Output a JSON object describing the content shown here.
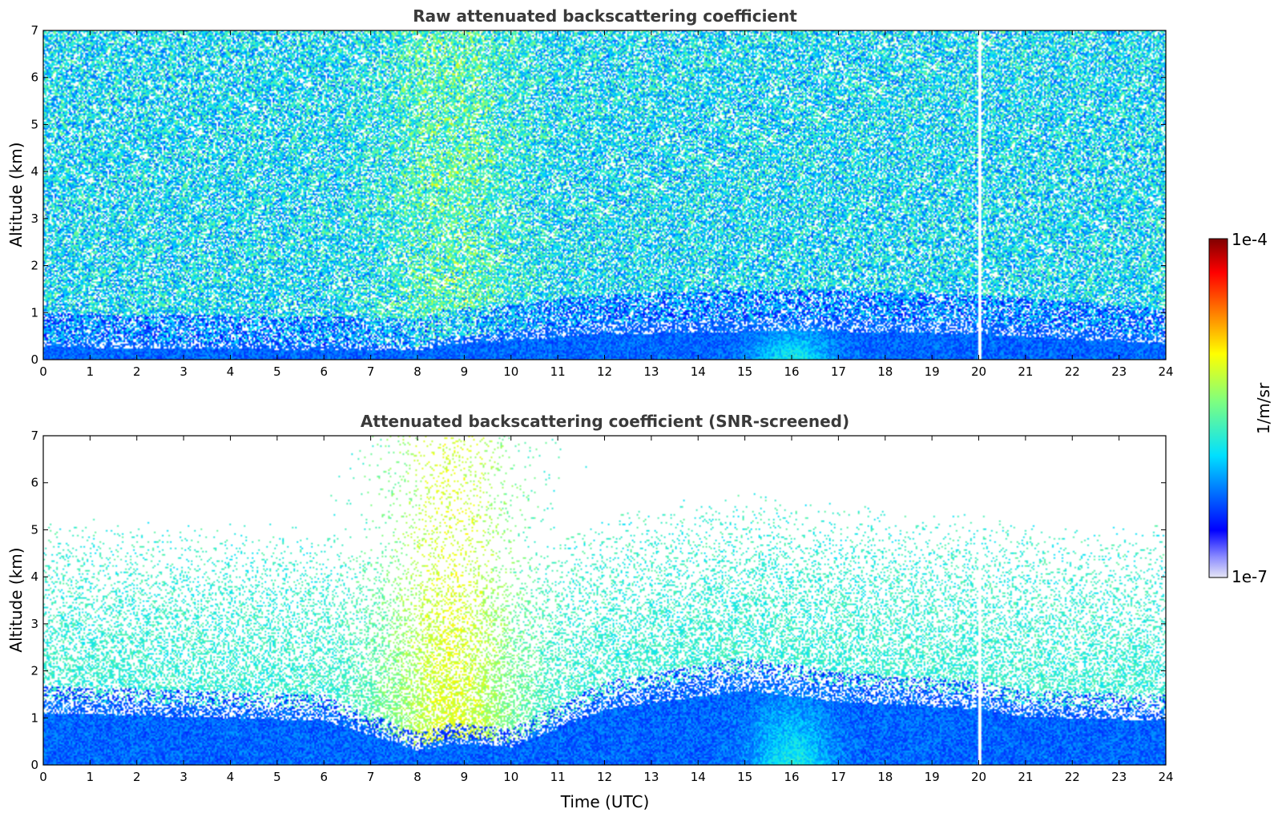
{
  "chart_data": [
    {
      "type": "heatmap",
      "title": "Raw attenuated backscattering coefficient",
      "xlabel": "",
      "ylabel": "Altitude (km)",
      "xlim": [
        0,
        24
      ],
      "ylim": [
        0,
        7
      ],
      "x_ticks": [
        "0",
        "1",
        "2",
        "3",
        "4",
        "5",
        "6",
        "7",
        "8",
        "9",
        "10",
        "11",
        "12",
        "13",
        "14",
        "15",
        "16",
        "17",
        "18",
        "19",
        "20",
        "21",
        "22",
        "23",
        "24"
      ],
      "y_ticks": [
        "0",
        "1",
        "2",
        "3",
        "4",
        "5",
        "6",
        "7"
      ],
      "screened": false,
      "features": {
        "boundary_layer_top_km": [
          [
            0,
            0.4
          ],
          [
            8,
            0.3
          ],
          [
            8.7,
            0.5
          ],
          [
            10,
            0.6
          ],
          [
            12,
            0.8
          ],
          [
            16,
            0.9
          ],
          [
            20,
            0.8
          ],
          [
            24,
            0.5
          ]
        ],
        "noisy_upper_region": true,
        "enhanced_aerosol_layer_utc": [
          7.5,
          10
        ],
        "enhanced_aerosol_layer_km": [
          0,
          7
        ],
        "data_gap_utc": 20
      }
    },
    {
      "type": "heatmap",
      "title": "Attenuated backscattering coefficient (SNR-screened)",
      "xlabel": "Time (UTC)",
      "ylabel": "Altitude (km)",
      "xlim": [
        0,
        24
      ],
      "ylim": [
        0,
        7
      ],
      "x_ticks": [
        "0",
        "1",
        "2",
        "3",
        "4",
        "5",
        "6",
        "7",
        "8",
        "9",
        "10",
        "11",
        "12",
        "13",
        "14",
        "15",
        "16",
        "17",
        "18",
        "19",
        "20",
        "21",
        "22",
        "23",
        "24"
      ],
      "y_ticks": [
        "0",
        "1",
        "2",
        "3",
        "4",
        "5",
        "6",
        "7"
      ],
      "screened": true,
      "features": {
        "boundary_layer_top_km": [
          [
            0,
            1.4
          ],
          [
            6,
            1.2
          ],
          [
            8,
            0.4
          ],
          [
            8.7,
            0.6
          ],
          [
            10,
            0.5
          ],
          [
            11,
            1.0
          ],
          [
            12,
            1.5
          ],
          [
            15,
            2.0
          ],
          [
            17,
            1.7
          ],
          [
            20,
            1.5
          ],
          [
            21,
            1.3
          ],
          [
            24,
            1.2
          ]
        ],
        "data_gap_utc": 20
      }
    }
  ],
  "colorbar": {
    "label": "1/m/sr",
    "max_label": "1e-4",
    "min_label": "1e-7",
    "scale": "log",
    "colormap_stops": [
      "#e6e6f5",
      "#0000ff",
      "#00e0ff",
      "#7fff7f",
      "#ffff00",
      "#ff8000",
      "#ff0000",
      "#800000"
    ]
  }
}
